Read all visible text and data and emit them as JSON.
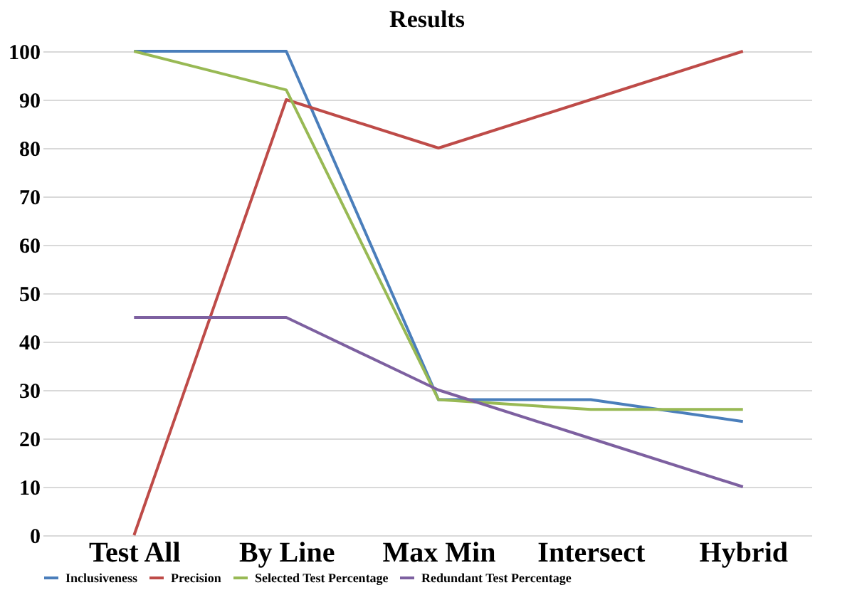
{
  "chart_data": {
    "type": "line",
    "title": "Results",
    "categories": [
      "Test All",
      "By Line",
      "Max Min",
      "Intersect",
      "Hybrid"
    ],
    "series": [
      {
        "name": "Inclusiveness",
        "color": "#4a7ebb",
        "values": [
          100,
          100,
          28,
          28,
          23.5
        ]
      },
      {
        "name": "Precision",
        "color": "#be4b48",
        "values": [
          0,
          90,
          80,
          90,
          100
        ]
      },
      {
        "name": "Selected Test Percentage",
        "color": "#98b954",
        "values": [
          100,
          92,
          28,
          26,
          26
        ]
      },
      {
        "name": "Redundant Test Percentage",
        "color": "#7d60a0",
        "values": [
          45,
          45,
          30,
          20,
          10
        ]
      }
    ],
    "ylim": [
      0,
      100
    ],
    "yticks": [
      0,
      10,
      20,
      30,
      40,
      50,
      60,
      70,
      80,
      90,
      100
    ],
    "grid": "y",
    "legend": "bottom",
    "marker": "none",
    "line_style": "solid"
  }
}
